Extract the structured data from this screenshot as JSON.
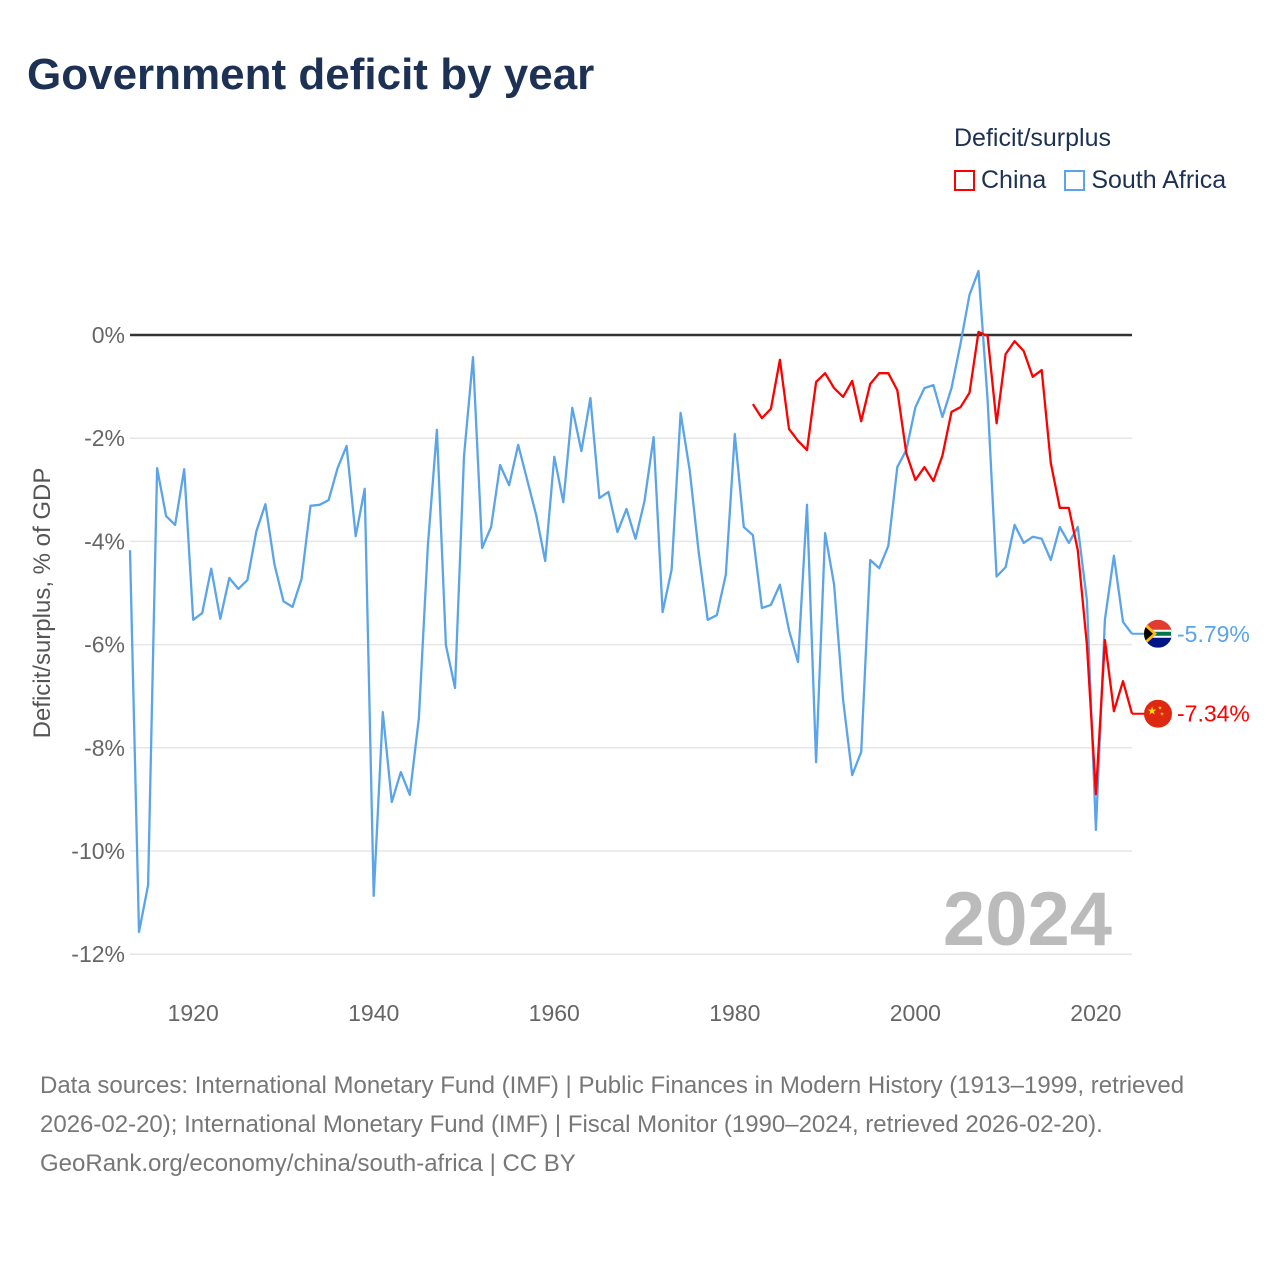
{
  "title": "Government deficit by year",
  "legend_title": "Deficit/surplus",
  "footer": {
    "sources": "Data sources: International Monetary Fund (IMF) | Public Finances in Modern History (1913–1999, retrieved 2026-02-20); International Monetary Fund (IMF) | Fiscal Monitor (1990–2024, retrieved 2026-02-20).",
    "credit": "GeoRank.org/economy/china/south-africa | CC BY"
  },
  "chart_data": {
    "type": "line",
    "title": "Government deficit by year",
    "xlabel": "",
    "ylabel": "Deficit/surplus, % of GDP",
    "xlim": [
      1913,
      2024
    ],
    "ylim": [
      -12,
      1.5
    ],
    "x_ticks": [
      1920,
      1940,
      1960,
      1980,
      2000,
      2020
    ],
    "x_tick_labels": [
      "1920",
      "1940",
      "1960",
      "1980",
      "2000",
      "2020"
    ],
    "y_ticks": [
      0,
      -2,
      -4,
      -6,
      -8,
      -10,
      -12
    ],
    "y_tick_labels": [
      "0%",
      "-2%",
      "-4%",
      "-6%",
      "-8%",
      "-10%",
      "-12%"
    ],
    "grid": true,
    "legend_position": "top-right",
    "year_label": "2024",
    "series": [
      {
        "name": "China",
        "color": "#ff0000",
        "start_year": 1982,
        "end_label": "-7.34%",
        "values": [
          -1.34,
          -1.61,
          -1.43,
          -0.48,
          -1.82,
          -2.05,
          -2.23,
          -0.91,
          -0.74,
          -1.03,
          -1.2,
          -0.89,
          -1.67,
          -0.95,
          -0.74,
          -0.74,
          -1.07,
          -2.29,
          -2.81,
          -2.56,
          -2.83,
          -2.34,
          -1.49,
          -1.4,
          -1.12,
          0.06,
          -0.02,
          -1.71,
          -0.37,
          -0.12,
          -0.31,
          -0.81,
          -0.68,
          -2.48,
          -3.35,
          -3.35,
          -4.17,
          -6.0,
          -8.9,
          -5.91,
          -7.29,
          -6.71,
          -7.34
        ]
      },
      {
        "name": "South Africa",
        "color": "#5ba4ea",
        "start_year": 1913,
        "end_label": "-5.79%",
        "values": [
          -4.17,
          -11.57,
          -10.66,
          -2.58,
          -3.51,
          -3.68,
          -2.6,
          -5.52,
          -5.39,
          -4.53,
          -5.5,
          -4.71,
          -4.92,
          -4.75,
          -3.8,
          -3.28,
          -4.44,
          -5.16,
          -5.27,
          -4.73,
          -3.31,
          -3.29,
          -3.2,
          -2.58,
          -2.15,
          -3.9,
          -2.98,
          -10.87,
          -7.31,
          -9.05,
          -8.47,
          -8.91,
          -7.42,
          -4.07,
          -1.84,
          -6.01,
          -6.84,
          -2.35,
          -0.43,
          -4.13,
          -3.72,
          -2.52,
          -2.91,
          -2.13,
          -2.81,
          -3.49,
          -4.38,
          -2.36,
          -3.24,
          -1.41,
          -2.25,
          -1.22,
          -3.16,
          -3.04,
          -3.82,
          -3.37,
          -3.95,
          -3.22,
          -1.98,
          -5.37,
          -4.55,
          -1.51,
          -2.62,
          -4.21,
          -5.52,
          -5.43,
          -4.65,
          -1.92,
          -3.72,
          -3.88,
          -5.29,
          -5.23,
          -4.84,
          -5.72,
          -6.34,
          -3.29,
          -8.28,
          -3.84,
          -4.84,
          -7.07,
          -8.53,
          -8.08,
          -4.36,
          -4.52,
          -4.09,
          -2.56,
          -2.23,
          -1.4,
          -1.03,
          -0.97,
          -1.59,
          -1.03,
          -0.17,
          0.78,
          1.24,
          -1.26,
          -4.68,
          -4.5,
          -3.68,
          -4.03,
          -3.91,
          -3.95,
          -4.36,
          -3.72,
          -4.03,
          -3.72,
          -5.14,
          -9.59,
          -5.52,
          -4.28,
          -5.56,
          -5.79
        ]
      }
    ]
  }
}
